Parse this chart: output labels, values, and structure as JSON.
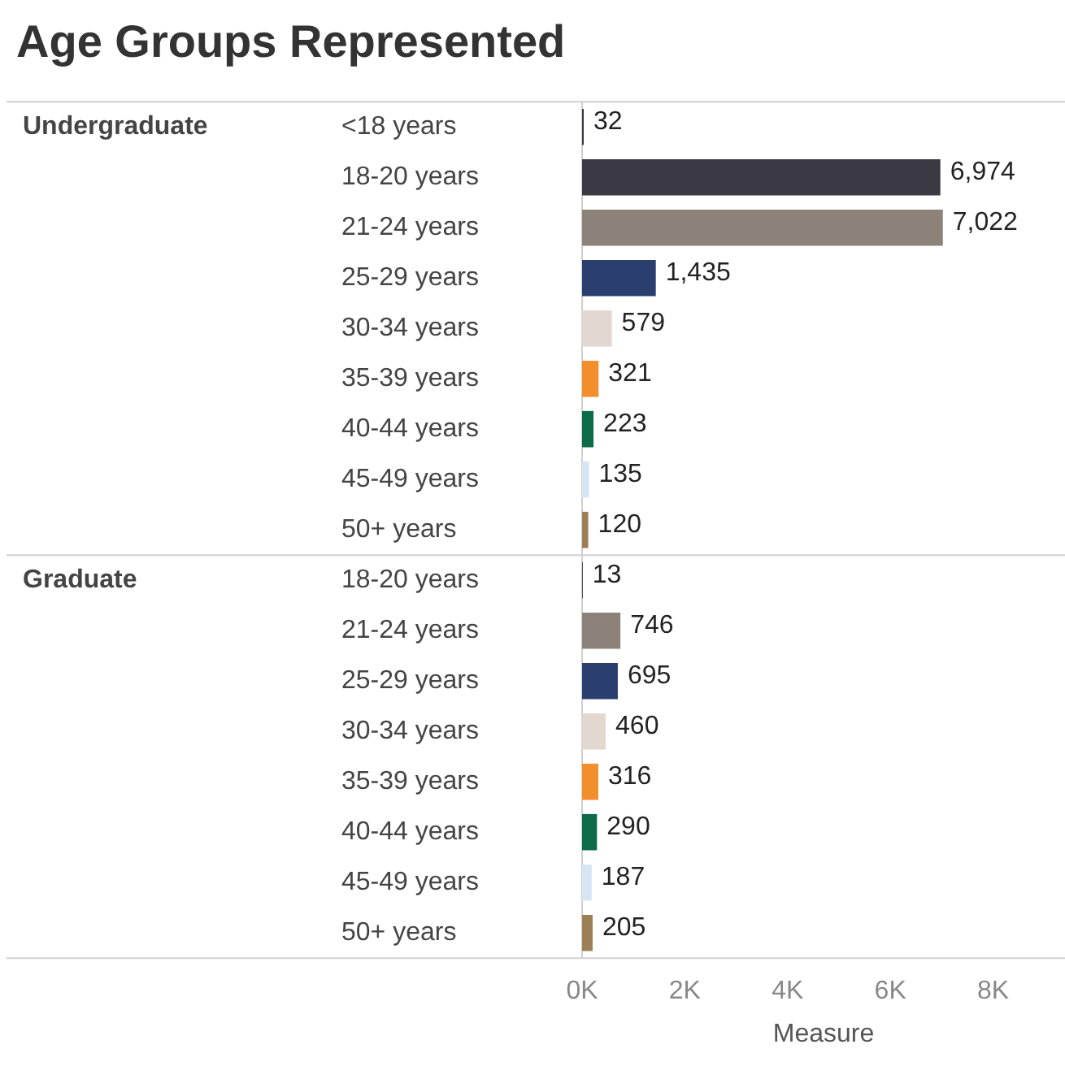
{
  "chart_data": {
    "type": "bar",
    "orientation": "horizontal",
    "title": "Age Groups Represented",
    "xlabel": "Measure",
    "categories": [
      "<18 years",
      "18-20 years",
      "21-24 years",
      "25-29 years",
      "30-34 years",
      "35-39 years",
      "40-44 years",
      "45-49 years",
      "50+ years",
      "18-20 years",
      "21-24 years",
      "25-29 years",
      "30-34 years",
      "35-39 years",
      "40-44 years",
      "45-49 years",
      "50+ years"
    ],
    "values": [
      32,
      6974,
      7022,
      1435,
      579,
      321,
      223,
      135,
      120,
      13,
      746,
      695,
      460,
      316,
      290,
      187,
      205
    ],
    "colors": [
      "#3b3a44",
      "#3b3a44",
      "#8d8279",
      "#2b3f6e",
      "#e3d8cf",
      "#f28e2b",
      "#0e6b4a",
      "#d6e6f5",
      "#9c7f55",
      "#3b3a44",
      "#8d8279",
      "#2b3f6e",
      "#e3d8cf",
      "#f28e2b",
      "#0e6b4a",
      "#d6e6f5",
      "#9c7f55"
    ],
    "xlim": [
      0,
      9400
    ],
    "xticks": [
      {
        "value": 0,
        "label": "0K"
      },
      {
        "value": 2000,
        "label": "2K"
      },
      {
        "value": 4000,
        "label": "4K"
      },
      {
        "value": 6000,
        "label": "6K"
      },
      {
        "value": 8000,
        "label": "8K"
      }
    ],
    "annotations": [
      "Undergraduate",
      "Graduate"
    ],
    "value_labels": [
      "32",
      "6,974",
      "7,022",
      "1,435",
      "579",
      "321",
      "223",
      "135",
      "120",
      "13",
      "746",
      "695",
      "460",
      "316",
      "290",
      "187",
      "205"
    ],
    "grid": false,
    "legend": false
  }
}
